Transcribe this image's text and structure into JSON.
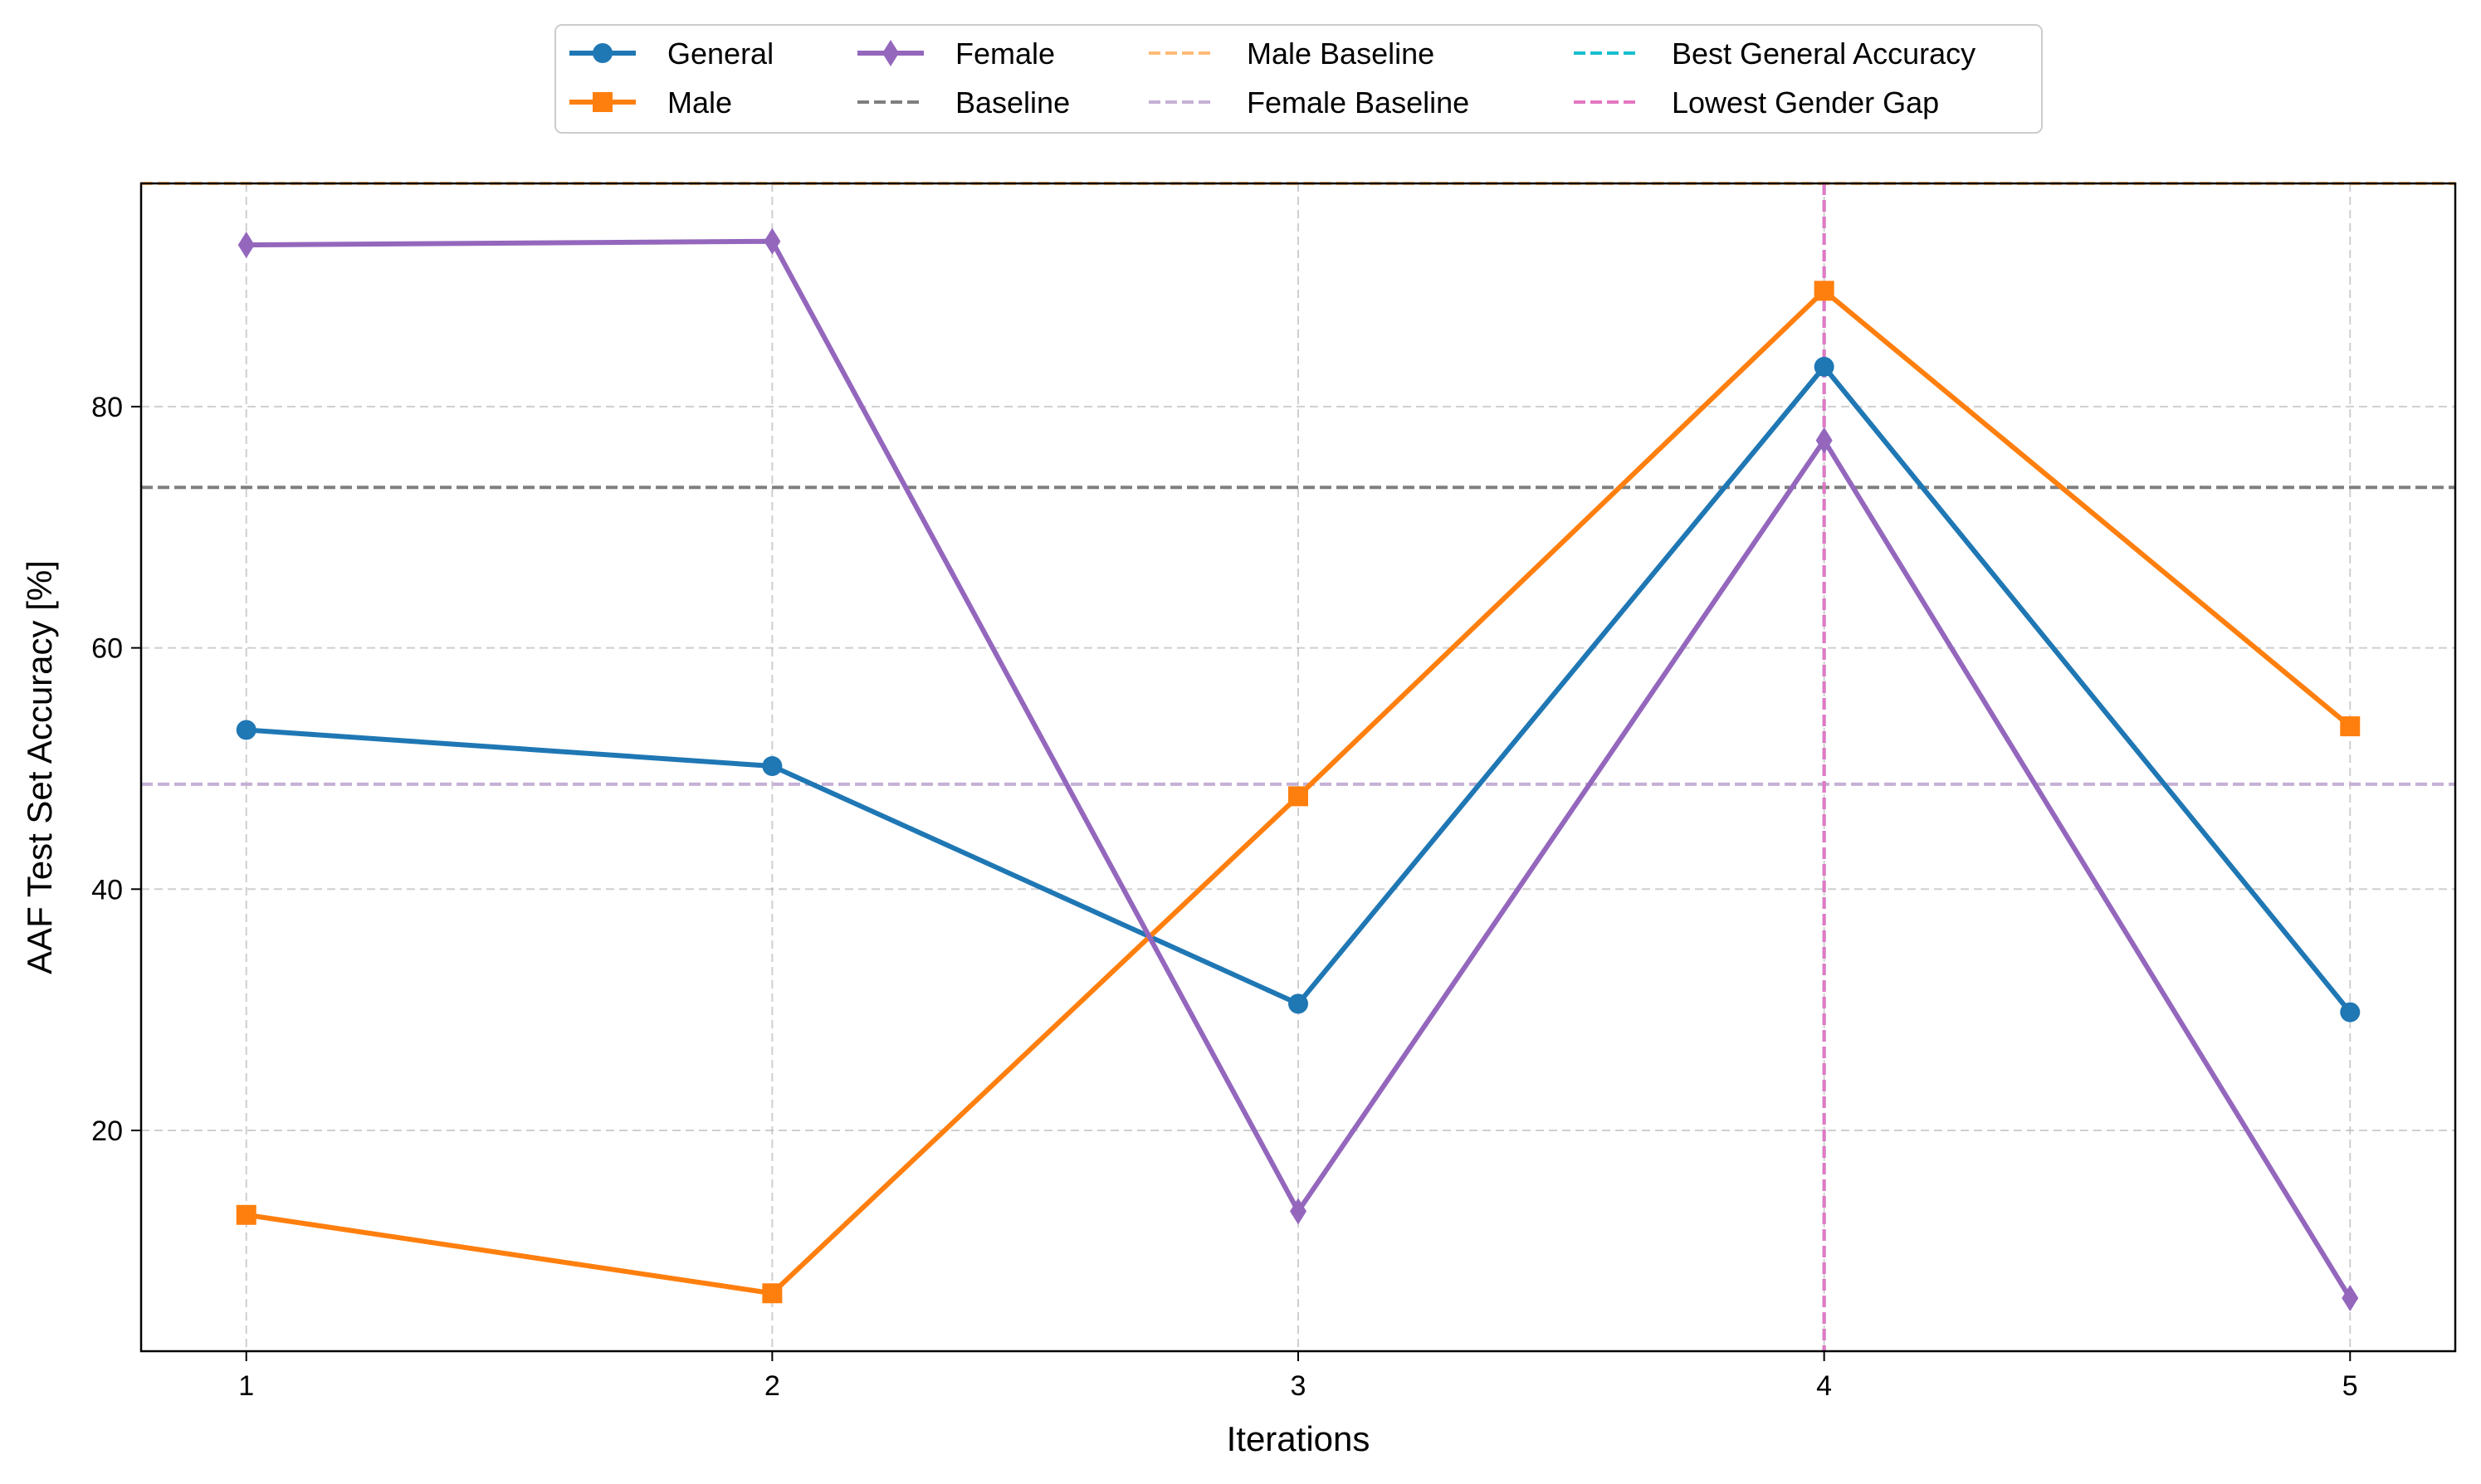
{
  "chart_data": {
    "type": "line",
    "title": "",
    "xlabel": "Iterations",
    "ylabel": "AAF Test Set Accuracy [%]",
    "x": [
      1,
      2,
      3,
      4,
      5
    ],
    "x_ticks": [
      "1",
      "2",
      "3",
      "4",
      "5"
    ],
    "xlim": [
      0.8,
      5.2
    ],
    "ylim": [
      1.7,
      98.5
    ],
    "y_ticks": [
      "20",
      "40",
      "60",
      "80"
    ],
    "y_tick_values": [
      20,
      40,
      60,
      80
    ],
    "grid": true,
    "legend_position": "top-center, outside plot, 4 columns",
    "series": [
      {
        "name": "General",
        "color": "#1f77b4",
        "marker": "circle",
        "values": [
          53.2,
          50.2,
          30.5,
          83.3,
          29.8
        ]
      },
      {
        "name": "Male",
        "color": "#ff7f0e",
        "marker": "square",
        "values": [
          13.0,
          6.5,
          47.7,
          89.6,
          53.5
        ]
      },
      {
        "name": "Female",
        "color": "#9467bd",
        "marker": "thin-diamond",
        "values": [
          93.4,
          93.7,
          13.3,
          77.2,
          6.1
        ]
      }
    ],
    "reference_lines": [
      {
        "name": "Baseline",
        "orientation": "horizontal",
        "value": 73.3,
        "color": "#7f7f7f"
      },
      {
        "name": "Male Baseline",
        "orientation": "horizontal",
        "value": 98.5,
        "color": "#ffbb78"
      },
      {
        "name": "Female Baseline",
        "orientation": "horizontal",
        "value": 48.7,
        "color": "#c5b0d5"
      },
      {
        "name": "Best General Accuracy",
        "orientation": "vertical",
        "value": 4,
        "color": "#17becf"
      },
      {
        "name": "Lowest Gender Gap",
        "orientation": "vertical",
        "value": 4,
        "color": "#e377c2"
      }
    ],
    "legend": [
      {
        "label": "General",
        "style": "line-marker",
        "color": "#1f77b4",
        "marker": "circle"
      },
      {
        "label": "Male",
        "style": "line-marker",
        "color": "#ff7f0e",
        "marker": "square"
      },
      {
        "label": "Female",
        "style": "line-marker",
        "color": "#9467bd",
        "marker": "thin-diamond"
      },
      {
        "label": "Baseline",
        "style": "dashed",
        "color": "#7f7f7f"
      },
      {
        "label": "Male Baseline",
        "style": "dashed",
        "color": "#ffbb78"
      },
      {
        "label": "Female Baseline",
        "style": "dashed",
        "color": "#c5b0d5"
      },
      {
        "label": "Best General Accuracy",
        "style": "dashed",
        "color": "#17becf"
      },
      {
        "label": "Lowest Gender Gap",
        "style": "dashed",
        "color": "#e377c2"
      }
    ]
  }
}
